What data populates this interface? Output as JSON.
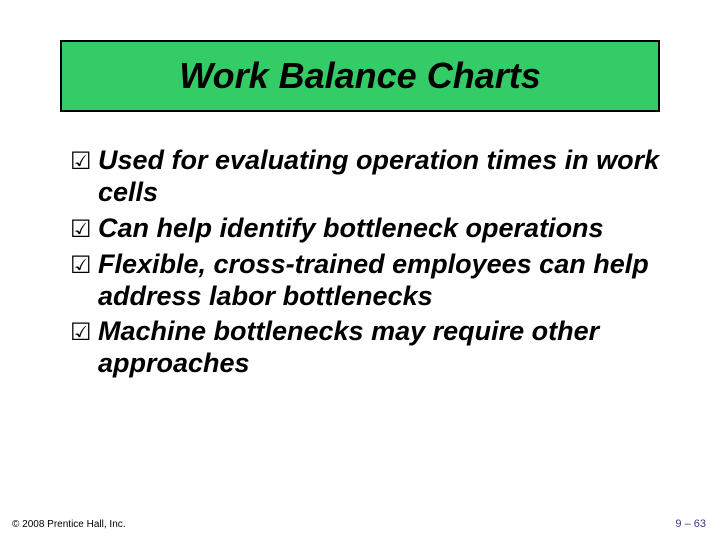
{
  "colors": {
    "slide_bg": "#ffffff",
    "title_bg": "#33cc66",
    "title_border": "#000000",
    "title_text": "#000000",
    "body_text": "#000000",
    "check_icon": "#000000",
    "footer_text": "#000000",
    "pagenum_text": "#3a3a8a"
  },
  "title": {
    "text": "Work Balance Charts",
    "font_size": 36,
    "border_width": 2
  },
  "bullets": [
    {
      "icon": "☑",
      "text": "Used for evaluating operation times in work cells"
    },
    {
      "icon": "☑",
      "text": "Can help identify bottleneck operations"
    },
    {
      "icon": "☑",
      "text": "Flexible, cross-trained employees can help address labor bottlenecks"
    },
    {
      "icon": "☑",
      "text": "Machine bottlenecks may require other approaches"
    }
  ],
  "footer": {
    "copyright": "© 2008 Prentice Hall, Inc.",
    "page": "9 – 63"
  }
}
